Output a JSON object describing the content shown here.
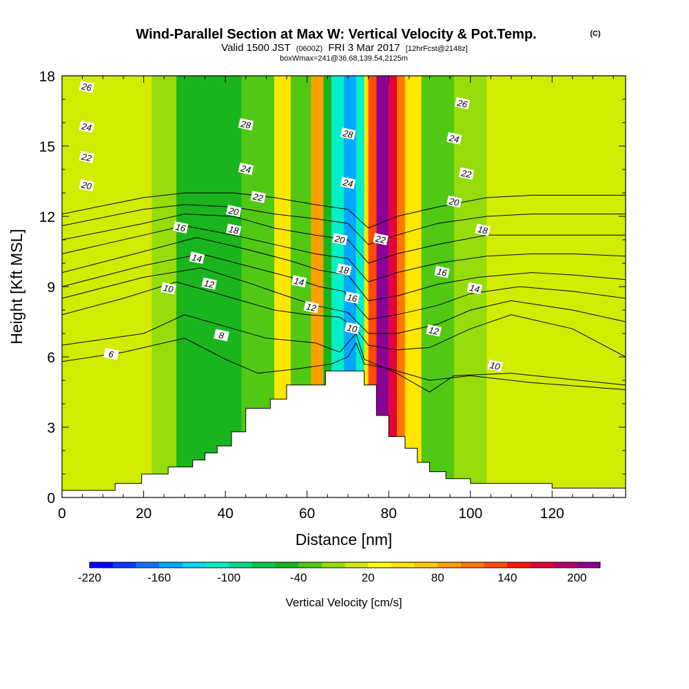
{
  "title": {
    "main": "Wind-Parallel Section at Max W: Vertical Velocity & Pot.Temp.",
    "copyright": "(C)",
    "valid_prefix": "Valid 1500 JST",
    "valid_utc": "(0600Z)",
    "valid_date": "FRI 3 Mar 2017",
    "forecast": "[12hrFcst@2148z]",
    "box_info": "boxWmax=241@36.68,139.54,2125m"
  },
  "chart_data": {
    "type": "heatmap",
    "title": "Wind-Parallel Section at Max W: Vertical Velocity & Pot.Temp.",
    "xlabel": "Distance [nm]",
    "ylabel": "Height [Kft MSL]",
    "xlim": [
      0,
      138
    ],
    "ylim": [
      0,
      18
    ],
    "x_ticks": [
      "0",
      "20",
      "40",
      "60",
      "80",
      "100",
      "120"
    ],
    "y_ticks": [
      "0",
      "3",
      "6",
      "9",
      "12",
      "15",
      "18"
    ],
    "grid": false,
    "colorbar": {
      "label": "Vertical Velocity [cm/s]",
      "tick_labels": [
        "-220",
        "-160",
        "-100",
        "-40",
        "20",
        "80",
        "140",
        "200"
      ],
      "levels": [
        -220,
        -200,
        -180,
        -160,
        -140,
        -120,
        -100,
        -80,
        -60,
        -40,
        -20,
        0,
        20,
        40,
        60,
        80,
        100,
        120,
        140,
        160,
        180,
        200,
        220
      ],
      "colors": [
        "#0000ff",
        "#0a37ff",
        "#0f73ff",
        "#00a8ff",
        "#00dcfa",
        "#00f0c8",
        "#00dc8c",
        "#00c850",
        "#1ab41e",
        "#50c814",
        "#96dc0a",
        "#d2eb00",
        "#ffff00",
        "#ffe600",
        "#ffc800",
        "#ffa000",
        "#ff7800",
        "#ff4b00",
        "#ff1400",
        "#e6003c",
        "#b4006e",
        "#8c0096"
      ]
    },
    "vertical_velocity_bands": [
      {
        "x": [
          0,
          22
        ],
        "value": 0
      },
      {
        "x": [
          22,
          28
        ],
        "value": -20
      },
      {
        "x": [
          28,
          44
        ],
        "value": -50
      },
      {
        "x": [
          44,
          52
        ],
        "value": -30
      },
      {
        "x": [
          52,
          56
        ],
        "value": 50
      },
      {
        "x": [
          56,
          61
        ],
        "value": -40
      },
      {
        "x": [
          61,
          64
        ],
        "value": 90
      },
      {
        "x": [
          64,
          66
        ],
        "value": -60
      },
      {
        "x": [
          66,
          69
        ],
        "value": -120
      },
      {
        "x": [
          69,
          72
        ],
        "value": -160
      },
      {
        "x": [
          72,
          74
        ],
        "value": -110
      },
      {
        "x": [
          74,
          75
        ],
        "value": 40
      },
      {
        "x": [
          75,
          77
        ],
        "value": 130
      },
      {
        "x": [
          77,
          80
        ],
        "value": 210
      },
      {
        "x": [
          80,
          82
        ],
        "value": 160
      },
      {
        "x": [
          82,
          84
        ],
        "value": 100
      },
      {
        "x": [
          84,
          88
        ],
        "value": 40
      },
      {
        "x": [
          88,
          96
        ],
        "value": -40
      },
      {
        "x": [
          96,
          104
        ],
        "value": -20
      },
      {
        "x": [
          104,
          138
        ],
        "value": 0
      }
    ],
    "terrain_profile": [
      {
        "x": 0,
        "h": 0.3
      },
      {
        "x": 13,
        "h": 0.6
      },
      {
        "x": 19.5,
        "h": 1.0
      },
      {
        "x": 26,
        "h": 1.3
      },
      {
        "x": 32,
        "h": 1.6
      },
      {
        "x": 35,
        "h": 1.9
      },
      {
        "x": 38,
        "h": 2.2
      },
      {
        "x": 41.5,
        "h": 2.8
      },
      {
        "x": 45,
        "h": 3.8
      },
      {
        "x": 51,
        "h": 4.2
      },
      {
        "x": 55,
        "h": 4.8
      },
      {
        "x": 64.5,
        "h": 5.4
      },
      {
        "x": 74,
        "h": 4.8
      },
      {
        "x": 77,
        "h": 3.5
      },
      {
        "x": 80,
        "h": 2.6
      },
      {
        "x": 84,
        "h": 2.1
      },
      {
        "x": 87,
        "h": 1.5
      },
      {
        "x": 90,
        "h": 1.1
      },
      {
        "x": 94,
        "h": 0.8
      },
      {
        "x": 100,
        "h": 0.6
      },
      {
        "x": 107,
        "h": 0.6
      },
      {
        "x": 120,
        "h": 0.4
      },
      {
        "x": 138,
        "h": 0.6
      }
    ],
    "theta_contours": [
      {
        "label": "6",
        "points": [
          [
            0,
            5.8
          ],
          [
            15,
            6.2
          ],
          [
            30,
            6.8
          ],
          [
            40,
            5.9
          ],
          [
            48,
            5.3
          ],
          [
            58,
            5.5
          ],
          [
            66,
            5.7
          ],
          [
            70,
            6.0
          ],
          [
            72,
            6.6
          ],
          [
            74,
            5.7
          ],
          [
            80,
            5.5
          ],
          [
            90,
            5.0
          ],
          [
            100,
            5.2
          ],
          [
            115,
            4.9
          ],
          [
            138,
            4.6
          ]
        ]
      },
      {
        "label": "8",
        "points": [
          [
            0,
            6.5
          ],
          [
            20,
            7.0
          ],
          [
            30,
            7.8
          ],
          [
            40,
            7.3
          ],
          [
            50,
            6.8
          ],
          [
            62,
            6.6
          ],
          [
            68,
            6.2
          ],
          [
            72,
            7.0
          ],
          [
            74,
            5.9
          ],
          [
            82,
            5.3
          ],
          [
            90,
            4.5
          ],
          [
            96,
            5.2
          ],
          [
            110,
            5.3
          ],
          [
            138,
            4.8
          ]
        ]
      },
      {
        "label": "10",
        "points": [
          [
            0,
            7.8
          ],
          [
            15,
            8.5
          ],
          [
            28,
            9.2
          ],
          [
            40,
            8.6
          ],
          [
            52,
            8.0
          ],
          [
            60,
            7.8
          ],
          [
            68,
            7.7
          ],
          [
            72,
            7.2
          ],
          [
            75,
            6.5
          ],
          [
            82,
            6.3
          ],
          [
            90,
            6.4
          ],
          [
            100,
            7.2
          ],
          [
            110,
            7.8
          ],
          [
            125,
            7.2
          ],
          [
            138,
            6.0
          ]
        ]
      },
      {
        "label": "12",
        "points": [
          [
            0,
            8.5
          ],
          [
            20,
            9.4
          ],
          [
            34,
            9.8
          ],
          [
            45,
            9.2
          ],
          [
            55,
            8.6
          ],
          [
            62,
            8.2
          ],
          [
            70,
            7.9
          ],
          [
            75,
            7.0
          ],
          [
            82,
            7.0
          ],
          [
            92,
            7.4
          ],
          [
            100,
            8.0
          ],
          [
            110,
            8.4
          ],
          [
            125,
            8.0
          ],
          [
            138,
            7.5
          ]
        ]
      },
      {
        "label": "14",
        "points": [
          [
            0,
            9.0
          ],
          [
            20,
            9.9
          ],
          [
            34,
            10.4
          ],
          [
            45,
            9.9
          ],
          [
            56,
            9.4
          ],
          [
            63,
            9.0
          ],
          [
            69,
            8.8
          ],
          [
            75,
            7.6
          ],
          [
            82,
            7.8
          ],
          [
            92,
            8.2
          ],
          [
            100,
            8.7
          ],
          [
            112,
            9.0
          ],
          [
            125,
            8.8
          ],
          [
            138,
            8.5
          ]
        ]
      },
      {
        "label": "16",
        "points": [
          [
            0,
            9.6
          ],
          [
            20,
            10.5
          ],
          [
            33,
            11.1
          ],
          [
            45,
            10.6
          ],
          [
            56,
            10.1
          ],
          [
            63,
            9.7
          ],
          [
            70,
            9.5
          ],
          [
            75,
            8.4
          ],
          [
            82,
            8.6
          ],
          [
            92,
            9.1
          ],
          [
            102,
            9.4
          ],
          [
            115,
            9.6
          ],
          [
            125,
            9.5
          ],
          [
            138,
            9.3
          ]
        ]
      },
      {
        "label": "18",
        "points": [
          [
            0,
            10.4
          ],
          [
            20,
            11.2
          ],
          [
            30,
            11.6
          ],
          [
            42,
            11.2
          ],
          [
            52,
            10.8
          ],
          [
            62,
            10.4
          ],
          [
            70,
            10.2
          ],
          [
            75,
            9.2
          ],
          [
            82,
            9.6
          ],
          [
            92,
            10.0
          ],
          [
            104,
            10.3
          ],
          [
            115,
            10.4
          ],
          [
            125,
            10.4
          ],
          [
            138,
            10.3
          ]
        ]
      },
      {
        "label": "20",
        "points": [
          [
            0,
            11.0
          ],
          [
            20,
            11.7
          ],
          [
            30,
            12.1
          ],
          [
            42,
            12.0
          ],
          [
            52,
            11.5
          ],
          [
            62,
            11.2
          ],
          [
            70,
            11.0
          ],
          [
            75,
            10.0
          ],
          [
            82,
            10.4
          ],
          [
            92,
            10.8
          ],
          [
            104,
            11.2
          ],
          [
            115,
            11.2
          ],
          [
            125,
            11.2
          ],
          [
            138,
            11.2
          ]
        ]
      },
      {
        "label": "22",
        "points": [
          [
            0,
            11.6
          ],
          [
            20,
            12.3
          ],
          [
            30,
            12.5
          ],
          [
            42,
            12.4
          ],
          [
            52,
            12.1
          ],
          [
            62,
            11.9
          ],
          [
            70,
            11.7
          ],
          [
            75,
            10.8
          ],
          [
            82,
            11.2
          ],
          [
            92,
            11.7
          ],
          [
            104,
            12.0
          ],
          [
            115,
            12.1
          ],
          [
            125,
            12.1
          ],
          [
            138,
            12.1
          ]
        ]
      },
      {
        "label": "24",
        "points": [
          [
            0,
            12.1
          ],
          [
            20,
            12.8
          ],
          [
            30,
            13.0
          ],
          [
            42,
            13.0
          ],
          [
            52,
            12.8
          ],
          [
            62,
            12.5
          ],
          [
            70,
            12.3
          ],
          [
            75,
            11.5
          ],
          [
            82,
            12.0
          ],
          [
            92,
            12.4
          ],
          [
            104,
            12.8
          ],
          [
            115,
            12.9
          ],
          [
            125,
            12.9
          ],
          [
            138,
            12.9
          ]
        ]
      }
    ],
    "theta_label_positions": [
      {
        "text": "26",
        "x": 6,
        "y": 17.5
      },
      {
        "text": "24",
        "x": 6,
        "y": 15.8
      },
      {
        "text": "22",
        "x": 6,
        "y": 14.5
      },
      {
        "text": "20",
        "x": 6,
        "y": 13.3
      },
      {
        "text": "16",
        "x": 29,
        "y": 11.5
      },
      {
        "text": "14",
        "x": 33,
        "y": 10.2
      },
      {
        "text": "10",
        "x": 26,
        "y": 8.9
      },
      {
        "text": "12",
        "x": 36,
        "y": 9.1
      },
      {
        "text": "8",
        "x": 39,
        "y": 6.9
      },
      {
        "text": "6",
        "x": 12,
        "y": 6.1
      },
      {
        "text": "28",
        "x": 45,
        "y": 15.9
      },
      {
        "text": "24",
        "x": 45,
        "y": 14.0
      },
      {
        "text": "22",
        "x": 48,
        "y": 12.8
      },
      {
        "text": "20",
        "x": 42,
        "y": 12.2
      },
      {
        "text": "18",
        "x": 42,
        "y": 11.4
      },
      {
        "text": "14",
        "x": 58,
        "y": 9.2
      },
      {
        "text": "12",
        "x": 61,
        "y": 8.1
      },
      {
        "text": "28",
        "x": 70,
        "y": 15.5
      },
      {
        "text": "24",
        "x": 70,
        "y": 13.4
      },
      {
        "text": "20",
        "x": 68,
        "y": 11.0
      },
      {
        "text": "18",
        "x": 69,
        "y": 9.7
      },
      {
        "text": "16",
        "x": 71,
        "y": 8.5
      },
      {
        "text": "10",
        "x": 71,
        "y": 7.2
      },
      {
        "text": "22",
        "x": 78,
        "y": 11.0
      },
      {
        "text": "26",
        "x": 98,
        "y": 16.8
      },
      {
        "text": "24",
        "x": 96,
        "y": 15.3
      },
      {
        "text": "22",
        "x": 99,
        "y": 13.8
      },
      {
        "text": "20",
        "x": 96,
        "y": 12.6
      },
      {
        "text": "18",
        "x": 103,
        "y": 11.4
      },
      {
        "text": "16",
        "x": 93,
        "y": 9.6
      },
      {
        "text": "14",
        "x": 101,
        "y": 8.9
      },
      {
        "text": "12",
        "x": 91,
        "y": 7.1
      },
      {
        "text": "10",
        "x": 106,
        "y": 5.6
      }
    ]
  }
}
